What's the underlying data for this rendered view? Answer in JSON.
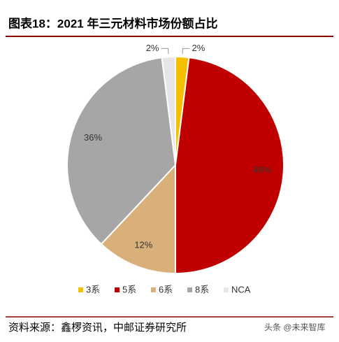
{
  "chart_data": {
    "type": "pie",
    "title": "图表18：2021 年三元材料市场份额占比",
    "categories": [
      "3系",
      "5系",
      "6系",
      "8系",
      "NCA"
    ],
    "values": [
      2,
      48,
      12,
      36,
      2
    ],
    "value_labels": [
      "2%",
      "48%",
      "12%",
      "36%",
      "2%"
    ],
    "colors": [
      "#f5c000",
      "#c00000",
      "#d9b07a",
      "#a6a6a6",
      "#e6e6e6"
    ],
    "legend": "bottom",
    "source": "资料来源：鑫椤资讯，中邮证券研究所",
    "watermark": "头条 @未来智库"
  }
}
